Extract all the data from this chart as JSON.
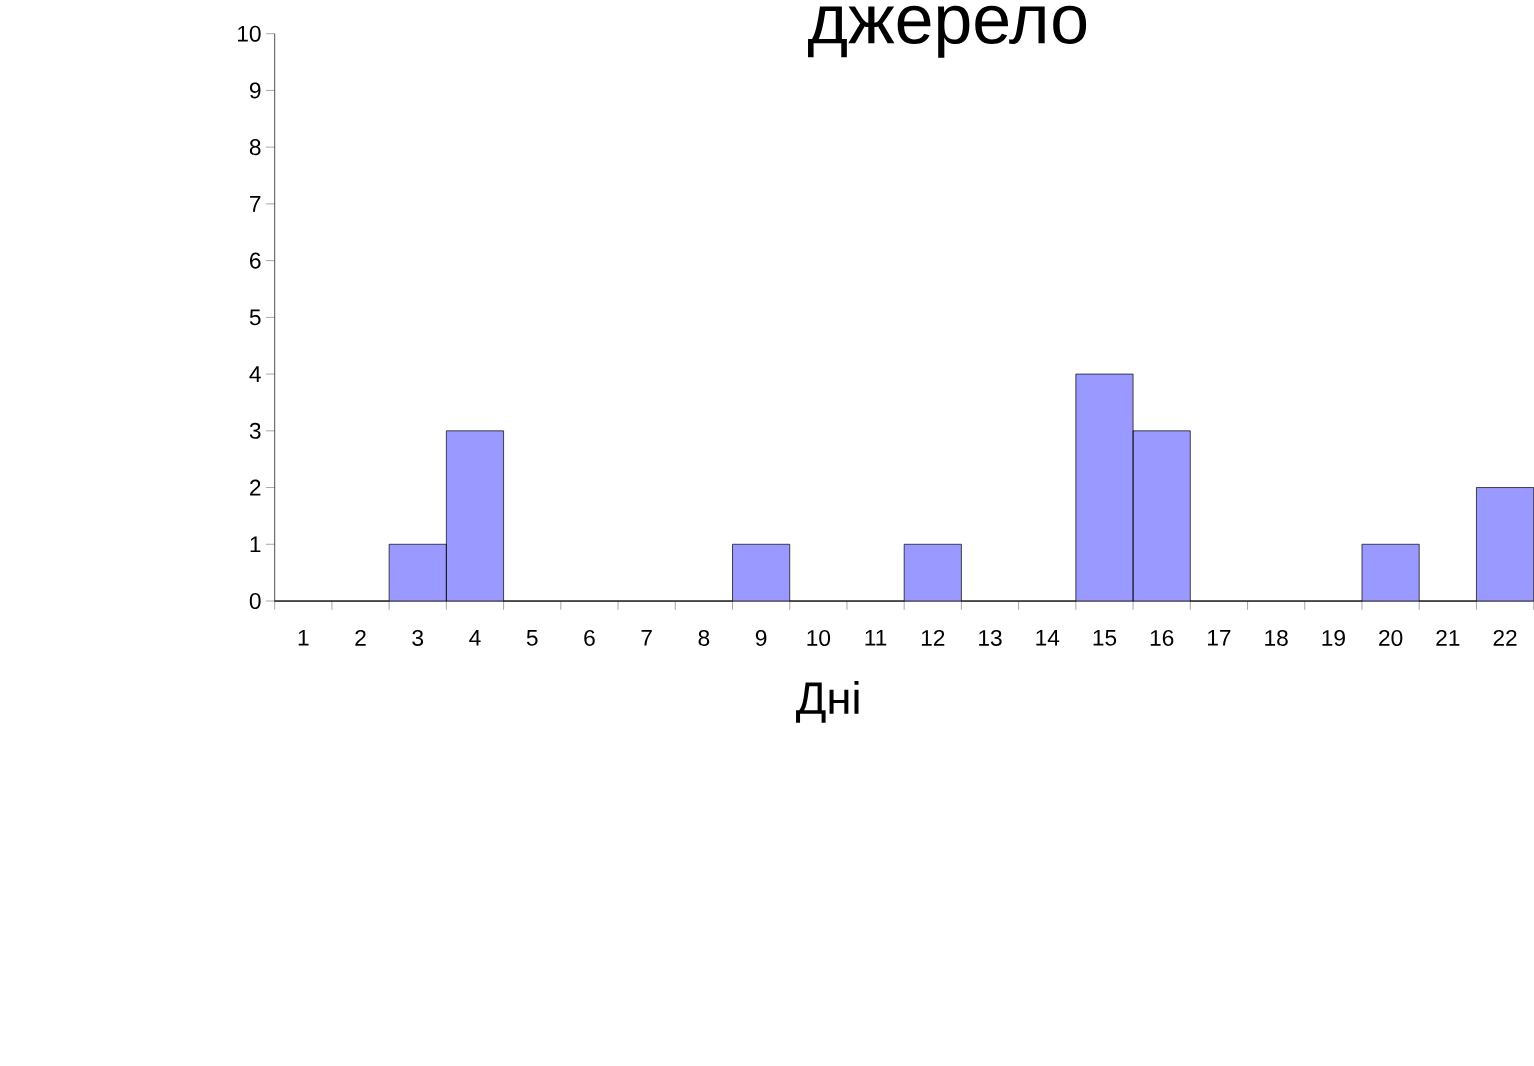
{
  "chart_data": {
    "type": "bar",
    "title": "джерело",
    "xlabel": "Дні",
    "categories": [
      "1",
      "2",
      "3",
      "4",
      "5",
      "6",
      "7",
      "8",
      "9",
      "10",
      "11",
      "12",
      "13",
      "14",
      "15",
      "16",
      "17",
      "18",
      "19",
      "20",
      "21",
      "22"
    ],
    "values": [
      0,
      0,
      1,
      3,
      0,
      0,
      0,
      0,
      1,
      0,
      0,
      1,
      0,
      0,
      4,
      3,
      0,
      0,
      0,
      1,
      0,
      2
    ],
    "color": "#9999ff",
    "ylim": [
      0,
      10
    ],
    "yticks": [
      0,
      1,
      2,
      3,
      4,
      5,
      6,
      7,
      8,
      9,
      10
    ],
    "grid": false
  }
}
